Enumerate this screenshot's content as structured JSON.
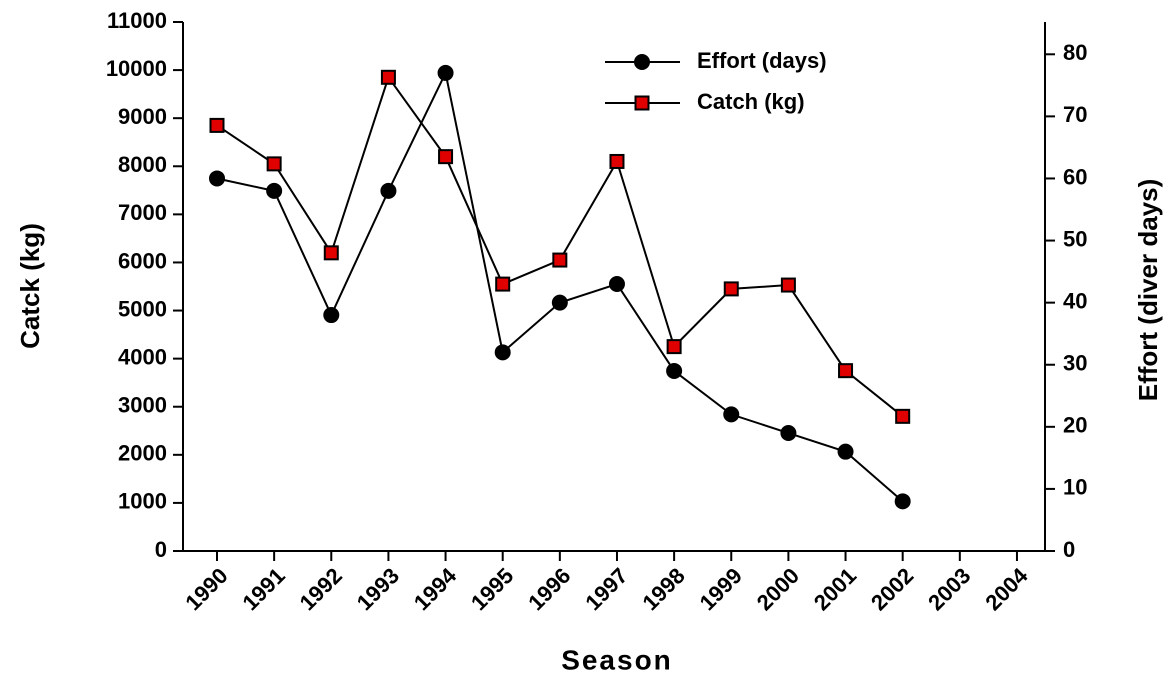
{
  "chart_data": {
    "type": "line",
    "categories": [
      "1990",
      "1991",
      "1992",
      "1993",
      "1994",
      "1995",
      "1996",
      "1997",
      "1998",
      "1999",
      "2000",
      "2001",
      "2002",
      "2003",
      "2004"
    ],
    "x_label": "Season",
    "y_label": "Catck (kg)",
    "y2_label": "Effort (diver days)",
    "ylim": [
      0,
      11000
    ],
    "yticks": [
      0,
      1000,
      2000,
      3000,
      4000,
      5000,
      6000,
      7000,
      8000,
      9000,
      10000,
      11000
    ],
    "y2lim": [
      0,
      85.2
    ],
    "y2ticks": [
      0,
      10,
      20,
      30,
      40,
      50,
      60,
      70,
      80
    ],
    "legend": "top-center",
    "series": [
      {
        "name": "Effort (days)",
        "color": "#000000",
        "marker": "circle",
        "axis": "y2",
        "values": [
          60,
          58,
          38,
          58,
          77,
          32,
          40,
          43,
          29,
          22,
          19,
          16,
          8,
          null,
          null
        ]
      },
      {
        "name": "Catch (kg)",
        "color": "#e00000",
        "marker": "square",
        "axis": "y",
        "values": [
          8850,
          8050,
          6200,
          9850,
          8200,
          5550,
          6050,
          8100,
          4250,
          5450,
          5530,
          3750,
          2800,
          null,
          null
        ]
      }
    ]
  }
}
